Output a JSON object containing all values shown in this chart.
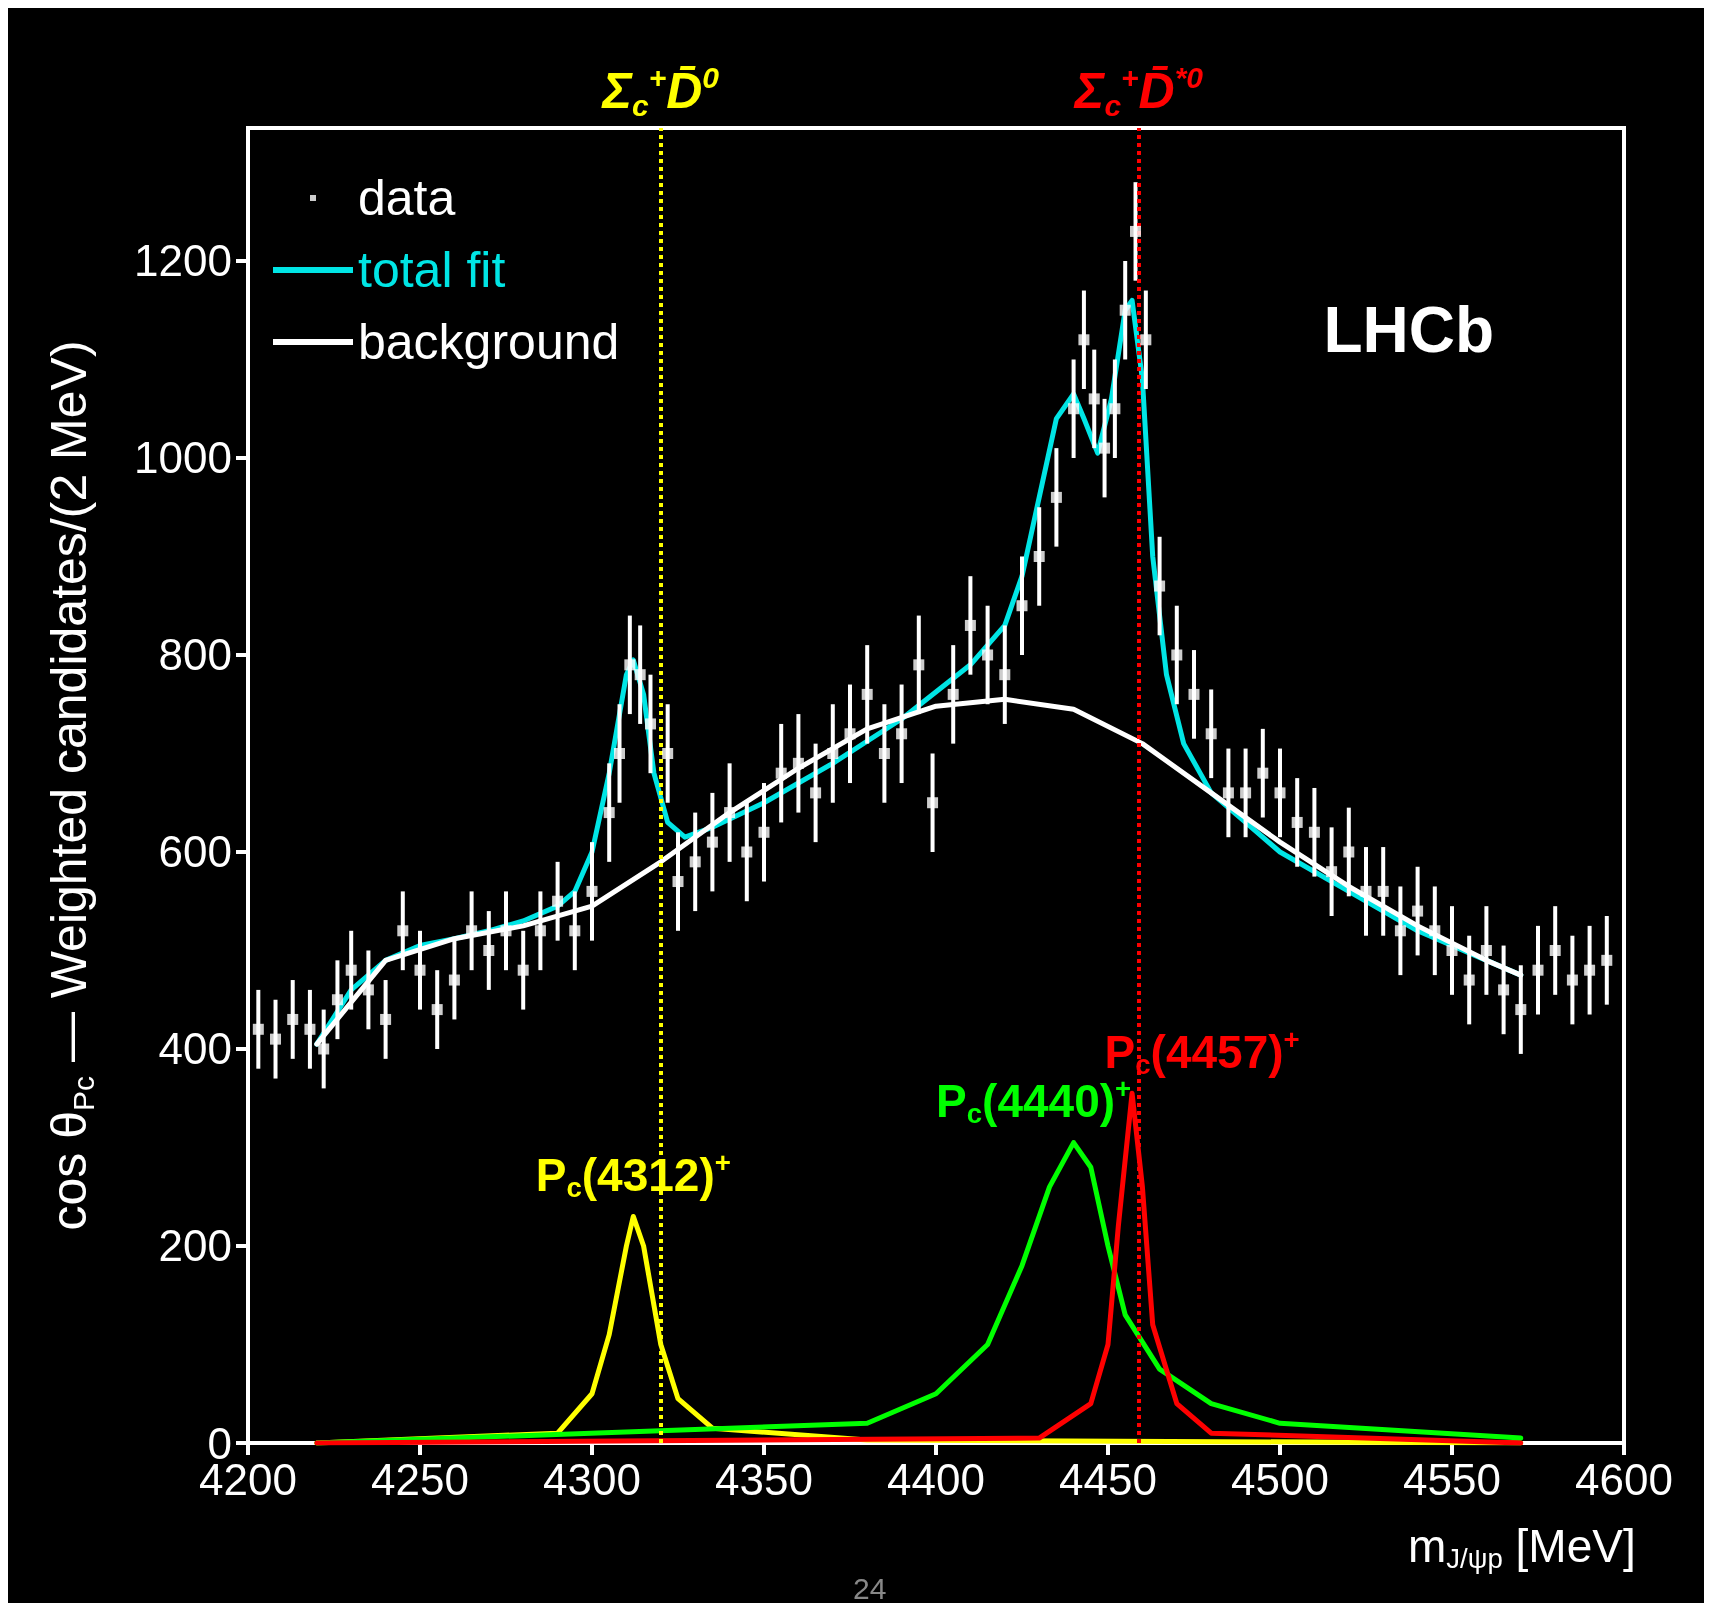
{
  "chart_data": {
    "type": "scatter",
    "xlabel": "m$_{J/ψp}$ [MeV]",
    "ylabel": "cos θ$_{Pc}$ — Weighted candidates/(2 MeV)",
    "xlim": [
      4200,
      4600
    ],
    "xticks": [
      4200,
      4250,
      4300,
      4350,
      4400,
      4450,
      4500,
      4550,
      4600
    ],
    "ylim": [
      0,
      1335
    ],
    "yticks": [
      0,
      200,
      400,
      600,
      800,
      1000,
      1200
    ],
    "grid": false,
    "legend": "top left",
    "annotations": [
      "LHCb",
      "24"
    ],
    "ref_lines": [
      {
        "axis": "x",
        "value": 4320,
        "label": "Σ$_{c}$$^{+}$D̄$^{0}$",
        "color": "#ffff00",
        "line_style": "dotted"
      },
      {
        "axis": "x",
        "value": 4459,
        "label": "Σ$_{c}$$^{+}$D̄$^{*0}$",
        "color": "#ff0000",
        "line_style": "dotted"
      }
    ],
    "series": [
      {
        "name": "data",
        "marker": "square",
        "color": "#ffffff",
        "x": [
          4203,
          4208,
          4213,
          4218,
          4222,
          4226,
          4230,
          4235,
          4240,
          4245,
          4250,
          4255,
          4260,
          4265,
          4270,
          4275,
          4280,
          4285,
          4290,
          4295,
          4300,
          4305,
          4308,
          4311,
          4314,
          4317,
          4322,
          4325,
          4330,
          4335,
          4340,
          4345,
          4350,
          4355,
          4360,
          4365,
          4370,
          4375,
          4380,
          4385,
          4390,
          4395,
          4399,
          4405,
          4410,
          4415,
          4420,
          4425,
          4430,
          4435,
          4440,
          4443,
          4446,
          4449,
          4452,
          4455,
          4458,
          4461,
          4465,
          4470,
          4475,
          4480,
          4485,
          4490,
          4495,
          4500,
          4505,
          4510,
          4515,
          4520,
          4525,
          4530,
          4535,
          4540,
          4545,
          4550,
          4555,
          4560,
          4565,
          4570,
          4575,
          4580,
          4585,
          4590,
          4595
        ],
        "values": [
          420,
          410,
          430,
          420,
          400,
          450,
          480,
          460,
          430,
          520,
          480,
          440,
          470,
          520,
          500,
          520,
          480,
          520,
          550,
          520,
          560,
          640,
          700,
          790,
          780,
          730,
          700,
          570,
          590,
          610,
          640,
          600,
          620,
          680,
          690,
          660,
          700,
          720,
          760,
          700,
          720,
          790,
          650,
          760,
          830,
          800,
          780,
          850,
          900,
          960,
          1050,
          1120,
          1060,
          1010,
          1050,
          1150,
          1230,
          1120,
          870,
          800,
          760,
          720,
          660,
          660,
          680,
          660,
          630,
          620,
          580,
          600,
          560,
          560,
          520,
          540,
          520,
          500,
          470,
          500,
          460,
          440,
          480,
          500,
          470,
          480,
          490
        ],
        "errors": [
          40,
          40,
          40,
          40,
          40,
          40,
          40,
          40,
          40,
          40,
          40,
          40,
          40,
          40,
          40,
          40,
          40,
          40,
          40,
          40,
          50,
          50,
          50,
          50,
          50,
          50,
          50,
          50,
          50,
          50,
          50,
          50,
          50,
          50,
          50,
          50,
          50,
          50,
          50,
          50,
          50,
          50,
          50,
          50,
          50,
          50,
          50,
          50,
          50,
          50,
          50,
          50,
          50,
          50,
          50,
          50,
          50,
          50,
          50,
          50,
          45,
          45,
          45,
          45,
          45,
          45,
          45,
          45,
          45,
          45,
          45,
          45,
          45,
          45,
          45,
          45,
          45,
          45,
          45,
          45,
          45,
          45,
          45,
          45,
          45
        ]
      },
      {
        "name": "total fit",
        "type": "line",
        "marker": "none",
        "color": "#00e5e5",
        "x": [
          4220,
          4230,
          4240,
          4250,
          4260,
          4270,
          4280,
          4290,
          4295,
          4300,
          4305,
          4310,
          4312,
          4315,
          4318,
          4322,
          4327,
          4335,
          4350,
          4370,
          4390,
          4410,
          4420,
          4425,
          4430,
          4435,
          4440,
          4443,
          4447,
          4451,
          4455,
          4457,
          4460,
          4463,
          4467,
          4472,
          4480,
          4490,
          4500,
          4520,
          4540,
          4560,
          4570
        ],
        "values": [
          405,
          460,
          490,
          505,
          512,
          520,
          530,
          545,
          560,
          600,
          680,
          780,
          795,
          760,
          680,
          630,
          615,
          625,
          650,
          690,
          735,
          790,
          830,
          880,
          960,
          1040,
          1065,
          1040,
          1005,
          1060,
          1150,
          1160,
          1080,
          900,
          780,
          710,
          660,
          630,
          600,
          560,
          520,
          490,
          475
        ]
      },
      {
        "name": "background",
        "type": "line",
        "marker": "none",
        "color": "#ffffff",
        "x": [
          4220,
          4240,
          4260,
          4280,
          4300,
          4320,
          4340,
          4360,
          4380,
          4400,
          4420,
          4440,
          4460,
          4480,
          4500,
          4520,
          4540,
          4560,
          4570
        ],
        "values": [
          405,
          490,
          512,
          525,
          545,
          590,
          640,
          685,
          725,
          748,
          755,
          745,
          710,
          660,
          610,
          565,
          525,
          490,
          475
        ]
      },
      {
        "name": "P$_{c}$(4312)$^{+}$",
        "type": "line",
        "marker": "none",
        "color": "#ffff00",
        "x": [
          4220,
          4290,
          4300,
          4305,
          4310,
          4312,
          4315,
          4320,
          4325,
          4335,
          4380,
          4570
        ],
        "values": [
          0,
          10,
          50,
          110,
          200,
          230,
          200,
          100,
          45,
          15,
          3,
          0
        ]
      },
      {
        "name": "P$_{c}$(4440)$^{+}$",
        "type": "line",
        "marker": "none",
        "color": "#00ff00",
        "x": [
          4220,
          4380,
          4400,
          4415,
          4425,
          4433,
          4440,
          4445,
          4450,
          4455,
          4465,
          4480,
          4500,
          4570
        ],
        "values": [
          0,
          20,
          50,
          100,
          180,
          260,
          305,
          280,
          200,
          130,
          75,
          40,
          20,
          5
        ]
      },
      {
        "name": "P$_{c}$(4457)$^{+}$",
        "type": "line",
        "marker": "none",
        "color": "#ff0000",
        "x": [
          4220,
          4430,
          4445,
          4450,
          4453,
          4457,
          4460,
          4463,
          4470,
          4480,
          4570
        ],
        "values": [
          0,
          5,
          40,
          100,
          220,
          355,
          260,
          120,
          40,
          10,
          0
        ]
      }
    ]
  }
}
